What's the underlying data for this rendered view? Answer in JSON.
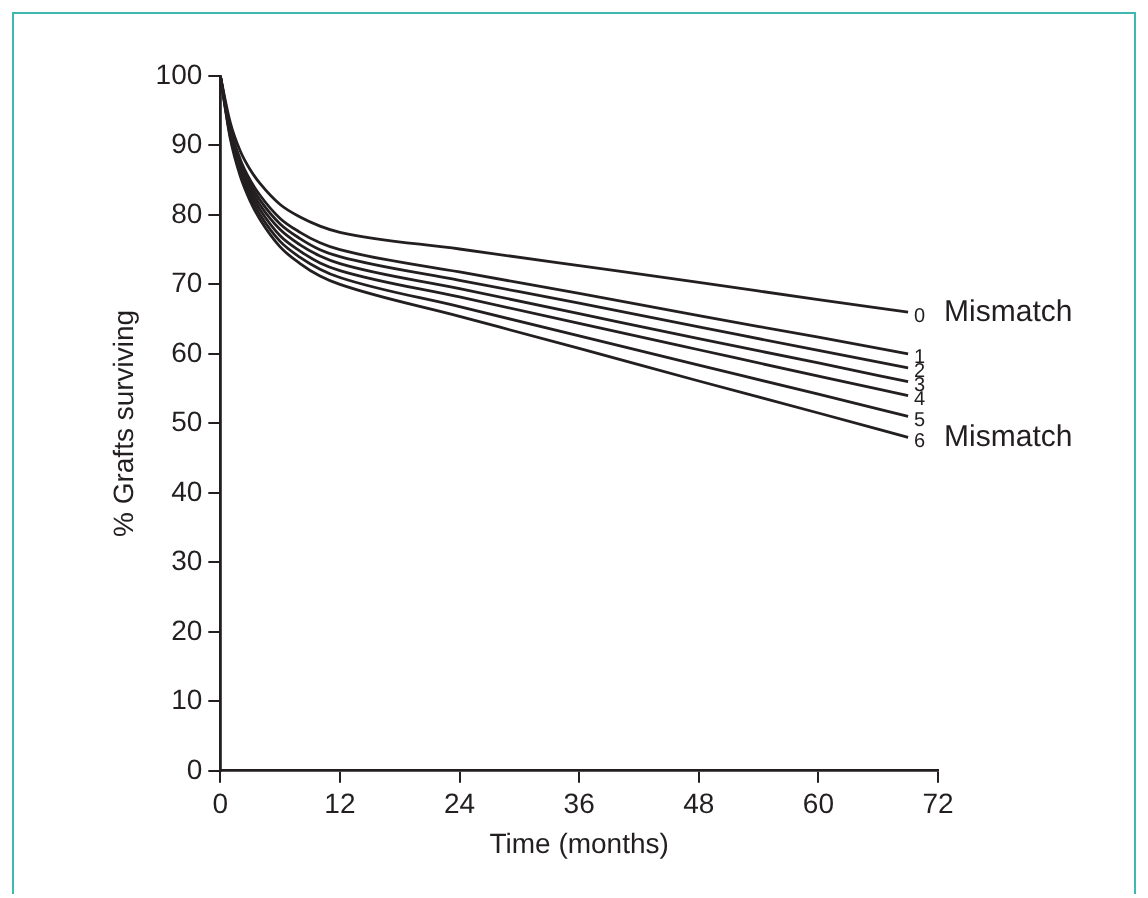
{
  "chart_data": {
    "type": "line",
    "xlabel": "Time (months)",
    "ylabel": "% Grafts surviving",
    "x": [
      0,
      1,
      2,
      3,
      4,
      6,
      8,
      10,
      12,
      24,
      36,
      48,
      60,
      69
    ],
    "xlim": [
      0,
      72
    ],
    "xticks": [
      0,
      12,
      24,
      36,
      48,
      60,
      72
    ],
    "ylim": [
      0,
      100
    ],
    "yticks": [
      0,
      10,
      20,
      30,
      40,
      50,
      60,
      70,
      80,
      90,
      100
    ],
    "series": [
      {
        "name": "0",
        "color": "#231f20",
        "values": [
          100,
          93.3,
          89.2,
          86.5,
          84.5,
          81.5,
          79.7,
          78.4,
          77.5,
          75.1,
          72.7,
          70.3,
          67.8,
          66
        ]
      },
      {
        "name": "1",
        "color": "#231f20",
        "values": [
          100,
          92.5,
          88,
          85,
          82.8,
          79.5,
          77.5,
          76,
          75,
          71.8,
          68.7,
          65.5,
          62.4,
          60
        ]
      },
      {
        "name": "2",
        "color": "#231f20",
        "values": [
          100,
          92.2,
          87.5,
          84.4,
          82.1,
          78.7,
          76.6,
          75,
          74,
          70.6,
          67.3,
          63.9,
          60.5,
          58
        ]
      },
      {
        "name": "3",
        "color": "#231f20",
        "values": [
          100,
          91.9,
          87,
          83.8,
          81.4,
          77.9,
          75.7,
          74.1,
          73,
          69.4,
          65.8,
          62.2,
          58.7,
          56
        ]
      },
      {
        "name": "4",
        "color": "#231f20",
        "values": [
          100,
          91.6,
          86.6,
          83.2,
          80.7,
          77,
          74.8,
          73.1,
          72,
          68.2,
          64.4,
          60.6,
          56.8,
          54
        ]
      },
      {
        "name": "5",
        "color": "#231f20",
        "values": [
          100,
          91.3,
          86.1,
          82.6,
          80,
          76.2,
          73.9,
          72.2,
          71,
          66.8,
          62.6,
          58.4,
          54.2,
          51
        ]
      },
      {
        "name": "6",
        "color": "#231f20",
        "values": [
          100,
          91,
          85.6,
          82,
          79.3,
          75.4,
          73,
          71.2,
          70,
          65.4,
          60.8,
          56.1,
          51.5,
          48
        ]
      }
    ],
    "annotations": [
      {
        "text": "Mismatch",
        "x": 69,
        "y": 66
      },
      {
        "text": "Mismatch",
        "x": 69,
        "y": 48
      }
    ],
    "grid": false,
    "legend": false,
    "marker": "none",
    "line_style": "solid"
  }
}
